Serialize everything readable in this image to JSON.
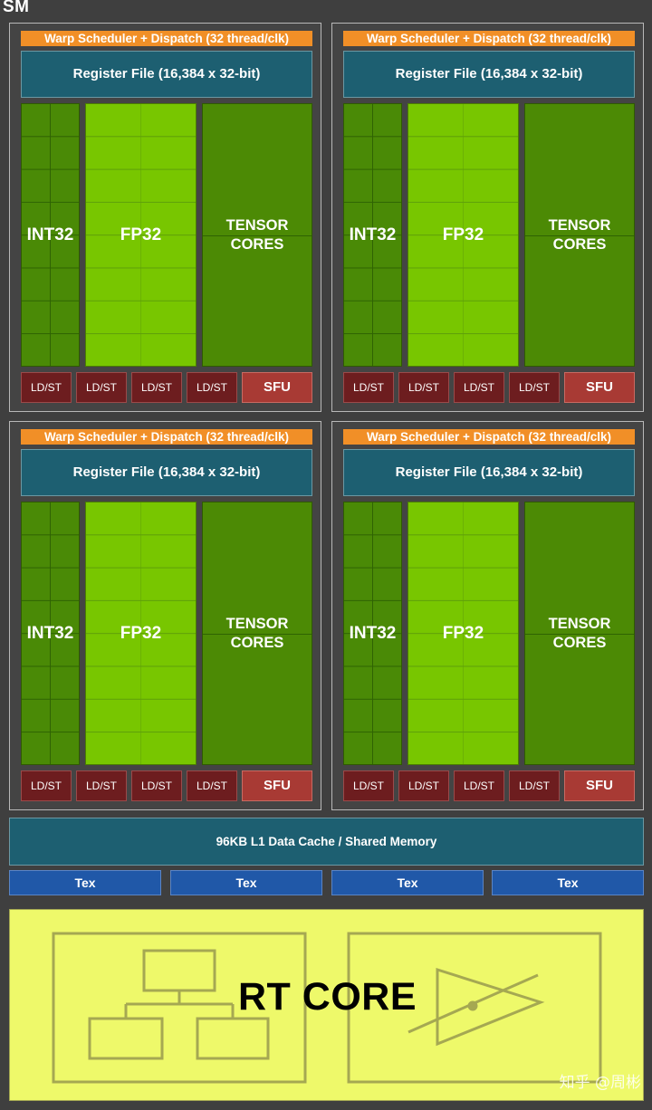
{
  "sm": {
    "title": "SM",
    "quadrants": [
      {
        "warp": "Warp Scheduler + Dispatch (32 thread/clk)",
        "register_file": "Register File (16,384 x 32-bit)",
        "int32": "INT32",
        "fp32": "FP32",
        "tensor": [
          "TENSOR",
          "CORES"
        ],
        "ldst": [
          "LD/ST",
          "LD/ST",
          "LD/ST",
          "LD/ST"
        ],
        "sfu": "SFU"
      },
      {
        "warp": "Warp Scheduler + Dispatch (32 thread/clk)",
        "register_file": "Register File (16,384 x 32-bit)",
        "int32": "INT32",
        "fp32": "FP32",
        "tensor": [
          "TENSOR",
          "CORES"
        ],
        "ldst": [
          "LD/ST",
          "LD/ST",
          "LD/ST",
          "LD/ST"
        ],
        "sfu": "SFU"
      },
      {
        "warp": "Warp Scheduler + Dispatch (32 thread/clk)",
        "register_file": "Register File (16,384 x 32-bit)",
        "int32": "INT32",
        "fp32": "FP32",
        "tensor": [
          "TENSOR",
          "CORES"
        ],
        "ldst": [
          "LD/ST",
          "LD/ST",
          "LD/ST",
          "LD/ST"
        ],
        "sfu": "SFU"
      },
      {
        "warp": "Warp Scheduler + Dispatch (32 thread/clk)",
        "register_file": "Register File (16,384 x 32-bit)",
        "int32": "INT32",
        "fp32": "FP32",
        "tensor": [
          "TENSOR",
          "CORES"
        ],
        "ldst": [
          "LD/ST",
          "LD/ST",
          "LD/ST",
          "LD/ST"
        ],
        "sfu": "SFU"
      }
    ],
    "l1_cache": "96KB L1 Data Cache / Shared Memory",
    "tex_units": [
      "Tex",
      "Tex",
      "Tex",
      "Tex"
    ],
    "rt_core": "RT CORE"
  },
  "watermark": "知乎 @周彬",
  "colors": {
    "background": "#3f3f3f",
    "warp_scheduler": "#f18f27",
    "register_file": "#1d5f71",
    "int32": "#4a8a06",
    "fp32": "#78c600",
    "tensor_cores": "#4c8a05",
    "ldst": "#6d1d1f",
    "sfu": "#a83a34",
    "tex": "#2058a8",
    "rt_core": "#eef96a"
  },
  "icons": [
    "bvh-tree-icon",
    "ray-triangle-intersection-icon"
  ]
}
